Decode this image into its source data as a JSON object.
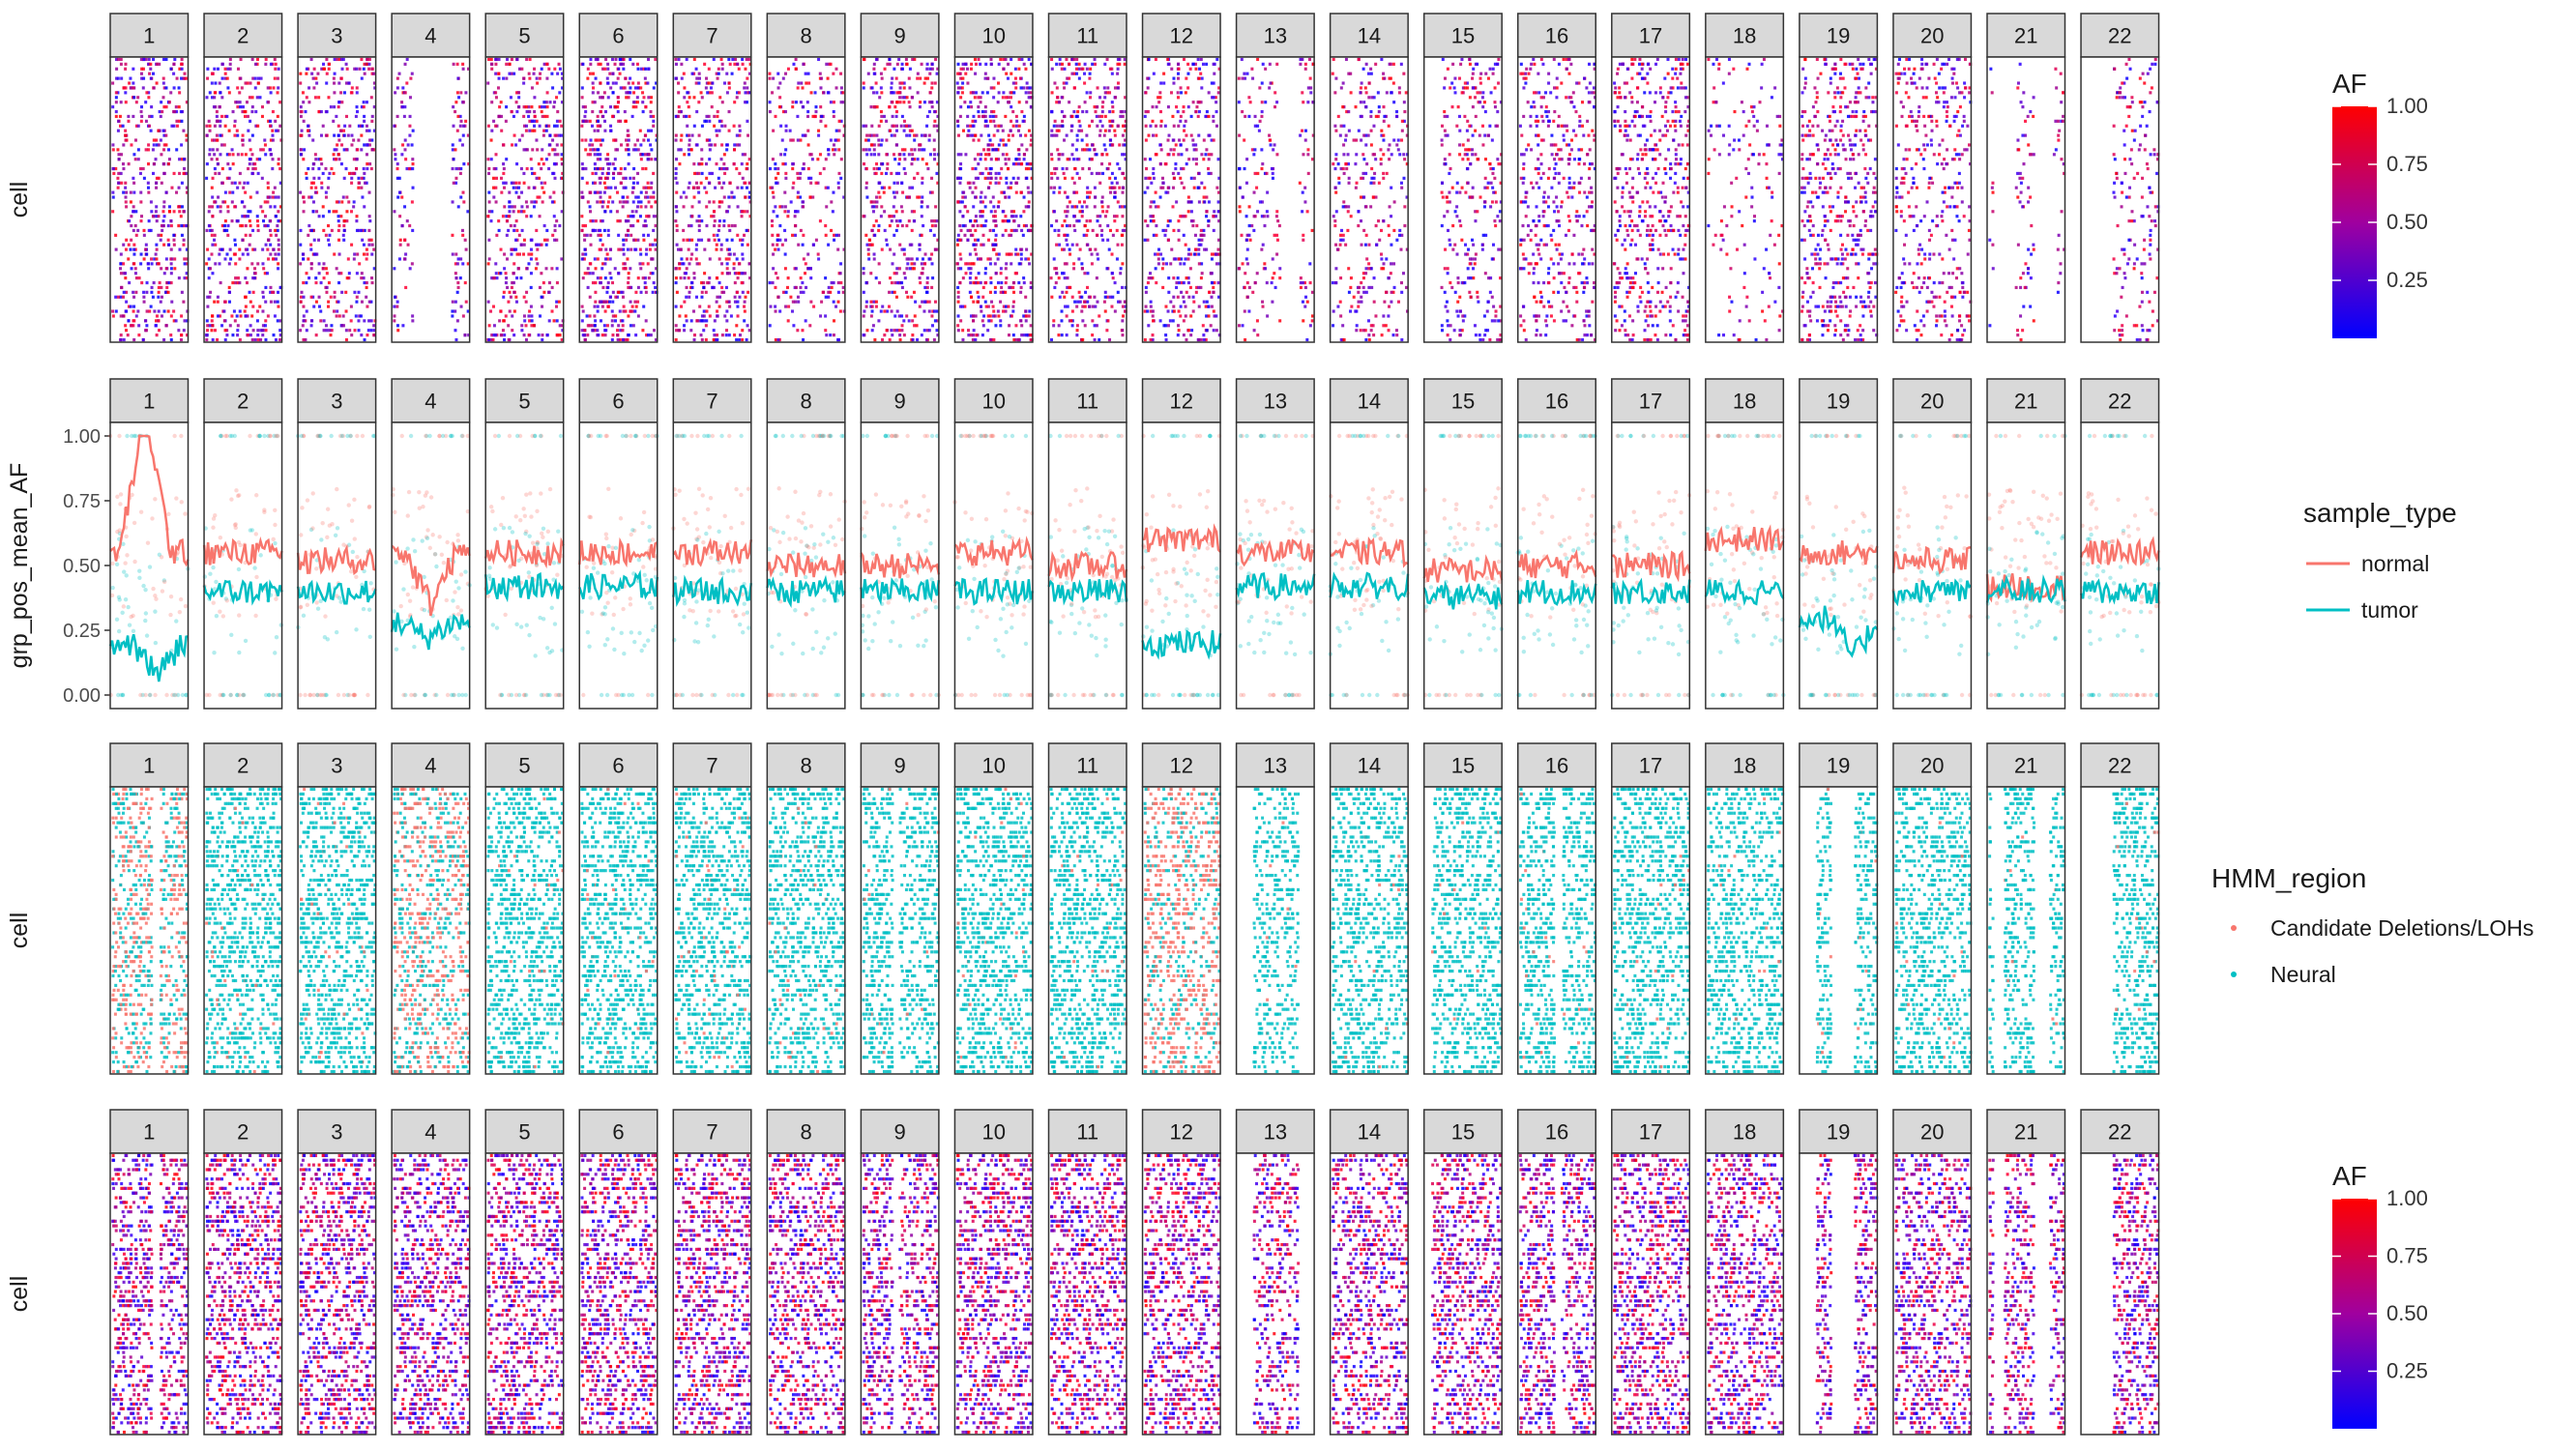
{
  "chromosomes": [
    "1",
    "2",
    "3",
    "4",
    "5",
    "6",
    "7",
    "8",
    "9",
    "10",
    "11",
    "12",
    "13",
    "14",
    "15",
    "16",
    "17",
    "18",
    "19",
    "20",
    "21",
    "22"
  ],
  "panels": [
    {
      "id": "af-raw",
      "type": "scatter",
      "ylabel": "cell",
      "color_mode": "af",
      "legend": {
        "title": "AF",
        "ticks": [
          "1.00",
          "0.75",
          "0.50",
          "0.25"
        ],
        "tick_values": [
          1.0,
          0.75,
          0.5,
          0.25
        ],
        "low_color": "#0000ff",
        "high_color": "#ff0000"
      },
      "density": [
        0.55,
        0.55,
        0.5,
        0.35,
        0.5,
        0.7,
        0.55,
        0.35,
        0.55,
        0.7,
        0.55,
        0.5,
        0.25,
        0.35,
        0.4,
        0.45,
        0.55,
        0.15,
        0.55,
        0.4,
        0.2,
        0.3
      ],
      "gaps": [
        [],
        [],
        [],
        [
          [
            0.25,
            0.75
          ]
        ],
        [],
        [],
        [],
        [],
        [],
        [],
        [],
        [],
        [
          [
            0.55,
            0.8
          ]
        ],
        [],
        [
          [
            0.0,
            0.2
          ]
        ],
        [],
        [],
        [],
        [],
        [],
        [
          [
            0.05,
            0.35
          ],
          [
            0.6,
            0.85
          ]
        ],
        [
          [
            0.0,
            0.4
          ]
        ]
      ]
    },
    {
      "id": "grp-pos-mean-af",
      "type": "line",
      "ylabel": "grp_pos_mean_AF",
      "ylim": [
        0,
        1
      ],
      "yticks": [
        0.0,
        0.25,
        0.5,
        0.75,
        1.0
      ],
      "ytick_labels": [
        "0.00",
        "0.25",
        "0.50",
        "0.75",
        "1.00"
      ],
      "legend": {
        "title": "sample_type"
      },
      "series": [
        {
          "name": "normal",
          "color": "#f8766d",
          "values": [
            0.55,
            0.55,
            0.52,
            0.55,
            0.55,
            0.55,
            0.55,
            0.5,
            0.5,
            0.55,
            0.5,
            0.6,
            0.55,
            0.55,
            0.48,
            0.5,
            0.5,
            0.6,
            0.55,
            0.52,
            0.42,
            0.55
          ],
          "shape": [
            [
              0.45,
              0.55
            ],
            [
              0,
              0
            ],
            [
              0,
              0
            ],
            [
              0.5,
              -0.2
            ],
            [
              0,
              0
            ],
            [
              0,
              0
            ],
            [
              0,
              0
            ],
            [
              0,
              0
            ],
            [
              0,
              0
            ],
            [
              0,
              0
            ],
            [
              0,
              0
            ],
            [
              0,
              0
            ],
            [
              0,
              0
            ],
            [
              0,
              0
            ],
            [
              0,
              0
            ],
            [
              0,
              0
            ],
            [
              0,
              0
            ],
            [
              0,
              0
            ],
            [
              0,
              0
            ],
            [
              0,
              0
            ],
            [
              0,
              0
            ],
            [
              0,
              0
            ]
          ]
        },
        {
          "name": "tumor",
          "color": "#00bfc4",
          "values": [
            0.2,
            0.4,
            0.4,
            0.28,
            0.42,
            0.42,
            0.4,
            0.4,
            0.4,
            0.4,
            0.4,
            0.2,
            0.42,
            0.42,
            0.38,
            0.4,
            0.4,
            0.4,
            0.3,
            0.4,
            0.4,
            0.4
          ],
          "shape": [
            [
              0.6,
              -0.12
            ],
            [
              0,
              0
            ],
            [
              0,
              0
            ],
            [
              0.45,
              -0.06
            ],
            [
              0,
              0
            ],
            [
              0,
              0
            ],
            [
              0,
              0
            ],
            [
              0,
              0
            ],
            [
              0,
              0
            ],
            [
              0,
              0
            ],
            [
              0,
              0
            ],
            [
              0,
              0
            ],
            [
              0,
              0
            ],
            [
              0,
              0
            ],
            [
              0,
              0
            ],
            [
              0,
              0
            ],
            [
              0,
              0
            ],
            [
              0,
              0
            ],
            [
              0.7,
              -0.15
            ],
            [
              0,
              0
            ],
            [
              0,
              0
            ],
            [
              0,
              0
            ]
          ]
        }
      ]
    },
    {
      "id": "hmm-region",
      "type": "scatter",
      "ylabel": "cell",
      "color_mode": "region",
      "legend": {
        "title": "HMM_region",
        "items": [
          {
            "label": "Candidate Deletions/LOHs",
            "color": "#f8766d"
          },
          {
            "label": "Neural",
            "color": "#00bfc4"
          }
        ]
      },
      "density": [
        0.9,
        0.95,
        0.95,
        0.9,
        0.95,
        0.95,
        0.95,
        0.9,
        0.9,
        0.95,
        0.95,
        0.9,
        0.7,
        0.85,
        0.9,
        0.9,
        0.9,
        0.85,
        0.85,
        0.85,
        0.8,
        0.9
      ],
      "red_fraction": [
        0.55,
        0.03,
        0.03,
        0.55,
        0.02,
        0.04,
        0.03,
        0.03,
        0.02,
        0.03,
        0.02,
        0.65,
        0.02,
        0.01,
        0.01,
        0.03,
        0.02,
        0.02,
        0.04,
        0.02,
        0.02,
        0.02
      ],
      "gaps": [
        [
          [
            0.52,
            0.62
          ]
        ],
        [],
        [],
        [],
        [],
        [],
        [],
        [],
        [
          [
            0.4,
            0.48
          ]
        ],
        [],
        [],
        [],
        [
          [
            0.0,
            0.2
          ],
          [
            0.8,
            1.0
          ]
        ],
        [],
        [
          [
            0.0,
            0.08
          ]
        ],
        [
          [
            0.45,
            0.55
          ]
        ],
        [],
        [],
        [
          [
            0.0,
            0.2
          ],
          [
            0.4,
            0.7
          ]
        ],
        [],
        [
          [
            0.05,
            0.2
          ],
          [
            0.6,
            0.8
          ]
        ],
        [
          [
            0.0,
            0.4
          ]
        ]
      ]
    },
    {
      "id": "af-hmm",
      "type": "scatter",
      "ylabel": "cell",
      "color_mode": "af",
      "legend": {
        "title": "AF",
        "ticks": [
          "1.00",
          "0.75",
          "0.50",
          "0.25"
        ],
        "tick_values": [
          1.0,
          0.75,
          0.5,
          0.25
        ],
        "low_color": "#0000ff",
        "high_color": "#ff0000"
      },
      "density": [
        0.9,
        0.95,
        0.95,
        0.9,
        0.95,
        0.95,
        0.95,
        0.9,
        0.9,
        0.95,
        0.95,
        0.9,
        0.7,
        0.85,
        0.9,
        0.9,
        0.9,
        0.85,
        0.85,
        0.85,
        0.8,
        0.9
      ],
      "gaps": [
        [
          [
            0.52,
            0.62
          ]
        ],
        [],
        [],
        [],
        [],
        [],
        [],
        [],
        [
          [
            0.4,
            0.48
          ]
        ],
        [],
        [],
        [],
        [
          [
            0.0,
            0.2
          ],
          [
            0.8,
            1.0
          ]
        ],
        [],
        [
          [
            0.0,
            0.08
          ]
        ],
        [
          [
            0.45,
            0.55
          ]
        ],
        [],
        [],
        [
          [
            0.0,
            0.2
          ],
          [
            0.4,
            0.7
          ]
        ],
        [],
        [
          [
            0.05,
            0.2
          ],
          [
            0.6,
            0.8
          ]
        ],
        [
          [
            0.0,
            0.4
          ]
        ]
      ]
    }
  ],
  "chart_data": [
    {
      "type": "scatter",
      "ylabel": "cell",
      "facets": [
        "1",
        "2",
        "3",
        "4",
        "5",
        "6",
        "7",
        "8",
        "9",
        "10",
        "11",
        "12",
        "13",
        "14",
        "15",
        "16",
        "17",
        "18",
        "19",
        "20",
        "21",
        "22"
      ],
      "legend_title": "AF",
      "color_range": [
        0,
        1
      ]
    },
    {
      "type": "line",
      "ylabel": "grp_pos_mean_AF",
      "ylim": [
        0,
        1
      ],
      "facets": [
        "1",
        "2",
        "3",
        "4",
        "5",
        "6",
        "7",
        "8",
        "9",
        "10",
        "11",
        "12",
        "13",
        "14",
        "15",
        "16",
        "17",
        "18",
        "19",
        "20",
        "21",
        "22"
      ],
      "series": [
        {
          "name": "normal",
          "values": [
            0.55,
            0.55,
            0.52,
            0.55,
            0.55,
            0.55,
            0.55,
            0.5,
            0.5,
            0.55,
            0.5,
            0.6,
            0.55,
            0.55,
            0.48,
            0.5,
            0.5,
            0.6,
            0.55,
            0.52,
            0.42,
            0.55
          ]
        },
        {
          "name": "tumor",
          "values": [
            0.2,
            0.4,
            0.4,
            0.28,
            0.42,
            0.42,
            0.4,
            0.4,
            0.4,
            0.4,
            0.4,
            0.2,
            0.42,
            0.42,
            0.38,
            0.4,
            0.4,
            0.4,
            0.3,
            0.4,
            0.4,
            0.4
          ]
        }
      ],
      "legend_title": "sample_type"
    },
    {
      "type": "scatter",
      "ylabel": "cell",
      "facets": [
        "1",
        "2",
        "3",
        "4",
        "5",
        "6",
        "7",
        "8",
        "9",
        "10",
        "11",
        "12",
        "13",
        "14",
        "15",
        "16",
        "17",
        "18",
        "19",
        "20",
        "21",
        "22"
      ],
      "legend_title": "HMM_region",
      "categories": [
        "Candidate Deletions/LOHs",
        "Neural"
      ]
    },
    {
      "type": "scatter",
      "ylabel": "cell",
      "facets": [
        "1",
        "2",
        "3",
        "4",
        "5",
        "6",
        "7",
        "8",
        "9",
        "10",
        "11",
        "12",
        "13",
        "14",
        "15",
        "16",
        "17",
        "18",
        "19",
        "20",
        "21",
        "22"
      ],
      "legend_title": "AF",
      "color_range": [
        0,
        1
      ]
    }
  ]
}
